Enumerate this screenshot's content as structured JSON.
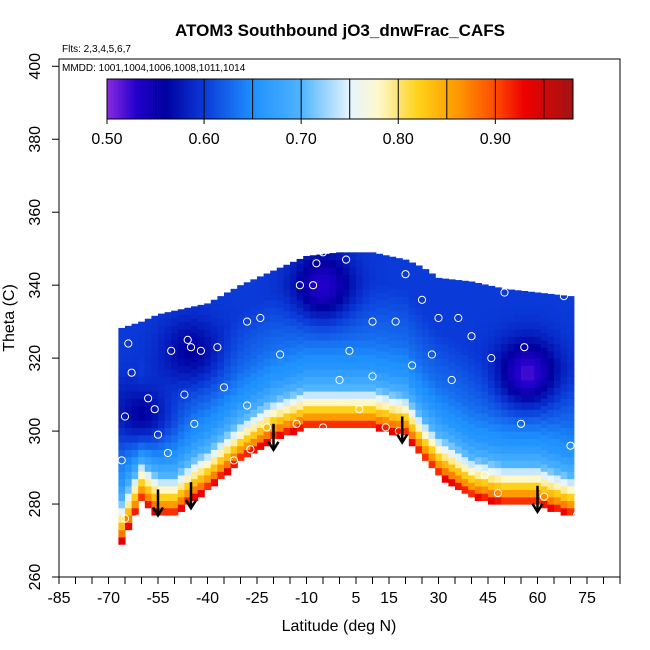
{
  "chart_data": {
    "type": "heatmap",
    "title": "ATOM3 Southbound jO3_dnwFrac_CAFS",
    "flights_note": "Flts: 2,3,4,5,6,7",
    "dates_note": "MMDD: 1001,1004,1006,1008,1011,1014",
    "xlabel": "Latitude (deg N)",
    "ylabel": "Theta (C)",
    "xlim": [
      -85,
      85
    ],
    "ylim": [
      260,
      402
    ],
    "x_ticks": [
      -85,
      -70,
      -55,
      -40,
      -25,
      -10,
      5,
      15,
      30,
      45,
      60,
      75
    ],
    "x_tick_labels": [
      "-85",
      "-70",
      "-55",
      "-40",
      "-25",
      "-10",
      "5",
      "15",
      "30",
      "45",
      "60",
      "75"
    ],
    "y_ticks": [
      260,
      280,
      300,
      320,
      340,
      360,
      380,
      400
    ],
    "y_tick_labels": [
      "260",
      "280",
      "300",
      "320",
      "340",
      "360",
      "380",
      "400"
    ],
    "colorbar": {
      "range": [
        0.5,
        0.98
      ],
      "ticks": [
        0.5,
        0.6,
        0.7,
        0.8,
        0.9
      ],
      "tick_labels": [
        "0.50",
        "0.60",
        "0.70",
        "0.80",
        "0.90"
      ],
      "stops": [
        {
          "v": 0.5,
          "color": "#8a2be2"
        },
        {
          "v": 0.53,
          "color": "#2200cc"
        },
        {
          "v": 0.56,
          "color": "#0000a0"
        },
        {
          "v": 0.6,
          "color": "#0a3ad8"
        },
        {
          "v": 0.65,
          "color": "#1e90ff"
        },
        {
          "v": 0.7,
          "color": "#4fb4ff"
        },
        {
          "v": 0.75,
          "color": "#e6f4ff"
        },
        {
          "v": 0.78,
          "color": "#fff8c8"
        },
        {
          "v": 0.82,
          "color": "#ffd21a"
        },
        {
          "v": 0.86,
          "color": "#ff9a00"
        },
        {
          "v": 0.9,
          "color": "#ff4a00"
        },
        {
          "v": 0.93,
          "color": "#ee0000"
        },
        {
          "v": 0.98,
          "color": "#a01414"
        }
      ]
    },
    "data_envelope": {
      "lats": [
        -67,
        -60,
        -55,
        -50,
        -45,
        -40,
        -30,
        -20,
        -10,
        0,
        10,
        20,
        25,
        30,
        40,
        50,
        60,
        70
      ],
      "theta_low": [
        268,
        281,
        277,
        277,
        281,
        284,
        292,
        298,
        301,
        301,
        301,
        299,
        293,
        288,
        282,
        280,
        280,
        277
      ],
      "theta_high": [
        328,
        330,
        332,
        333,
        334,
        335,
        340,
        344,
        348,
        349,
        349,
        347,
        345,
        342,
        341,
        339,
        338,
        337
      ]
    },
    "field_bands": [
      {
        "offset": 0,
        "value": 0.94
      },
      {
        "offset": 2,
        "value": 0.88
      },
      {
        "offset": 5,
        "value": 0.82
      },
      {
        "offset": 8,
        "value": 0.76
      },
      {
        "offset": 11,
        "value": 0.7
      },
      {
        "offset": 16,
        "value": 0.66
      },
      {
        "offset": 25,
        "value": 0.63
      },
      {
        "offset": 40,
        "value": 0.6
      }
    ],
    "low_value_blobs": [
      {
        "lat": -5,
        "theta": 340,
        "value": 0.53
      },
      {
        "lat": 57,
        "theta": 316,
        "value": 0.52
      },
      {
        "lat": -60,
        "theta": 305,
        "value": 0.56
      },
      {
        "lat": -45,
        "theta": 322,
        "value": 0.56
      }
    ],
    "sample_points": [
      {
        "lat": -65,
        "theta": 276
      },
      {
        "lat": -61,
        "theta": 276
      },
      {
        "lat": -66,
        "theta": 292
      },
      {
        "lat": -65,
        "theta": 304
      },
      {
        "lat": -63,
        "theta": 316
      },
      {
        "lat": -64,
        "theta": 324
      },
      {
        "lat": -58,
        "theta": 309
      },
      {
        "lat": -56,
        "theta": 306
      },
      {
        "lat": -55,
        "theta": 299
      },
      {
        "lat": -52,
        "theta": 294
      },
      {
        "lat": -51,
        "theta": 322
      },
      {
        "lat": -46,
        "theta": 325
      },
      {
        "lat": -45,
        "theta": 323
      },
      {
        "lat": -44,
        "theta": 302
      },
      {
        "lat": -47,
        "theta": 310
      },
      {
        "lat": -42,
        "theta": 322
      },
      {
        "lat": -37,
        "theta": 323
      },
      {
        "lat": -35,
        "theta": 312
      },
      {
        "lat": -28,
        "theta": 330
      },
      {
        "lat": -28,
        "theta": 307
      },
      {
        "lat": -24,
        "theta": 331
      },
      {
        "lat": -22,
        "theta": 301
      },
      {
        "lat": -18,
        "theta": 321
      },
      {
        "lat": -16,
        "theta": 348
      },
      {
        "lat": -12,
        "theta": 340
      },
      {
        "lat": -8,
        "theta": 340
      },
      {
        "lat": -7,
        "theta": 346
      },
      {
        "lat": -5,
        "theta": 349
      },
      {
        "lat": 0,
        "theta": 314
      },
      {
        "lat": 2,
        "theta": 347
      },
      {
        "lat": 3,
        "theta": 322
      },
      {
        "lat": 6,
        "theta": 306
      },
      {
        "lat": 10,
        "theta": 330
      },
      {
        "lat": 10,
        "theta": 315
      },
      {
        "lat": 14,
        "theta": 301
      },
      {
        "lat": 17,
        "theta": 330
      },
      {
        "lat": 18,
        "theta": 300
      },
      {
        "lat": 20,
        "theta": 343
      },
      {
        "lat": 22,
        "theta": 318
      },
      {
        "lat": 25,
        "theta": 336
      },
      {
        "lat": 28,
        "theta": 321
      },
      {
        "lat": 30,
        "theta": 331
      },
      {
        "lat": 34,
        "theta": 314
      },
      {
        "lat": 36,
        "theta": 331
      },
      {
        "lat": 40,
        "theta": 326
      },
      {
        "lat": 46,
        "theta": 320
      },
      {
        "lat": 50,
        "theta": 338
      },
      {
        "lat": 55,
        "theta": 302
      },
      {
        "lat": 56,
        "theta": 323
      },
      {
        "lat": 44,
        "theta": 288
      },
      {
        "lat": 48,
        "theta": 283
      },
      {
        "lat": 62,
        "theta": 282
      },
      {
        "lat": 68,
        "theta": 337
      },
      {
        "lat": 70,
        "theta": 296
      },
      {
        "lat": 72,
        "theta": 277
      },
      {
        "lat": -32,
        "theta": 292
      },
      {
        "lat": -27,
        "theta": 295
      },
      {
        "lat": -13,
        "theta": 302
      },
      {
        "lat": -5,
        "theta": 301
      }
    ],
    "arrows": [
      {
        "lat": -55,
        "theta": 284
      },
      {
        "lat": -45,
        "theta": 286
      },
      {
        "lat": -20,
        "theta": 302
      },
      {
        "lat": 19,
        "theta": 304
      },
      {
        "lat": 60,
        "theta": 285
      }
    ]
  }
}
